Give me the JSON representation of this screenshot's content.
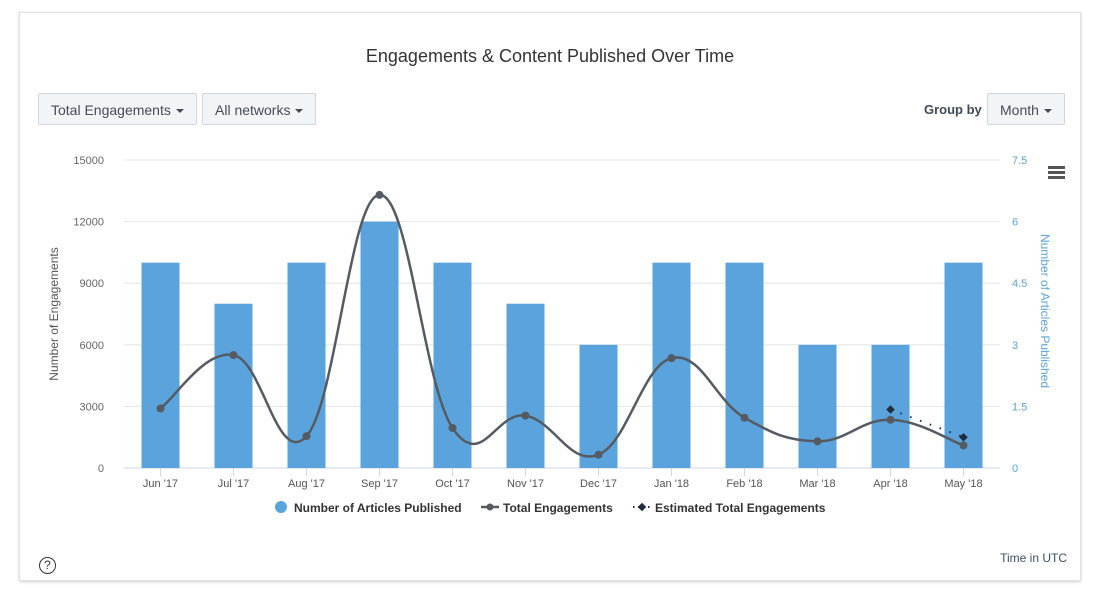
{
  "colors": {
    "bar": "#5ba3dc",
    "line": "#555b63",
    "estimate": "#1f2d3d",
    "right_axis": "#5ba3dc",
    "grid": "#e6e6e6"
  },
  "controls": {
    "metric_label": "Total Engagements",
    "network_label": "All networks",
    "group_by_label": "Group by",
    "group_by_value": "Month"
  },
  "footer": {
    "help": "?",
    "timezone": "Time in UTC"
  },
  "chart_data": {
    "type": "bar",
    "title": "Engagements & Content Published Over Time",
    "categories": [
      "Jun '17",
      "Jul '17",
      "Aug '17",
      "Sep '17",
      "Oct '17",
      "Nov '17",
      "Dec '17",
      "Jan '18",
      "Feb '18",
      "Mar '18",
      "Apr '18",
      "May '18"
    ],
    "y_left": {
      "label": "Number of Engagements",
      "ticks": [
        "0",
        "3000",
        "6000",
        "9000",
        "12000",
        "15000"
      ],
      "range": [
        0,
        15000
      ]
    },
    "y_right": {
      "label": "Number of Articles Published",
      "ticks": [
        "0",
        "1.5",
        "3",
        "4.5",
        "6",
        "7.5"
      ],
      "range": [
        0,
        7.5
      ]
    },
    "series": [
      {
        "name": "Number of Articles Published",
        "type": "bar",
        "axis": "right",
        "values": [
          5,
          4,
          5,
          6,
          5,
          4,
          3,
          5,
          5,
          3,
          3,
          5
        ]
      },
      {
        "name": "Total Engagements",
        "type": "line",
        "axis": "left",
        "values": [
          2900,
          5500,
          1550,
          13300,
          1950,
          2550,
          650,
          5350,
          2450,
          1300,
          2350,
          1100
        ]
      },
      {
        "name": "Estimated Total Engagements",
        "type": "dotted-line",
        "axis": "left",
        "x": [
          "Apr '18",
          "May '18"
        ],
        "values": [
          2850,
          1500
        ]
      }
    ],
    "legend": [
      "Number of Articles Published",
      "Total Engagements",
      "Estimated Total Engagements"
    ]
  }
}
